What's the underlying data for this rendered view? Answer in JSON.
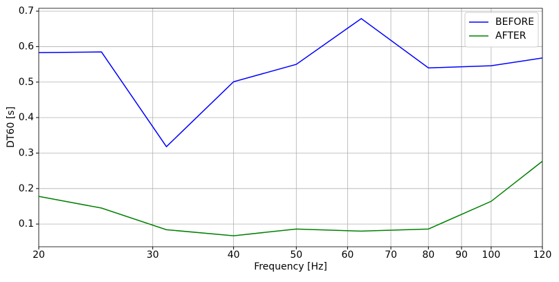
{
  "chart_data": {
    "type": "line",
    "x": [
      20,
      25,
      31.5,
      40,
      50,
      63,
      80,
      100,
      120
    ],
    "series": [
      {
        "name": "BEFORE",
        "color": "#0000ff",
        "values": [
          0.583,
          0.585,
          0.318,
          0.501,
          0.55,
          0.679,
          0.54,
          0.546,
          0.568
        ]
      },
      {
        "name": "AFTER",
        "color": "#008000",
        "values": [
          0.178,
          0.145,
          0.084,
          0.067,
          0.086,
          0.08,
          0.086,
          0.164,
          0.277
        ]
      }
    ],
    "xlabel": "Frequency [Hz]",
    "ylabel": "DT60 [s]",
    "xscale": "log",
    "xlim": [
      20,
      120
    ],
    "xticks": [
      20,
      30,
      40,
      50,
      60,
      70,
      80,
      90,
      100,
      120
    ],
    "ylim": [
      0.036,
      0.708
    ],
    "yticks": [
      0.1,
      0.2,
      0.3,
      0.4,
      0.5,
      0.6,
      0.7
    ],
    "grid": true,
    "legend": "upper right"
  }
}
